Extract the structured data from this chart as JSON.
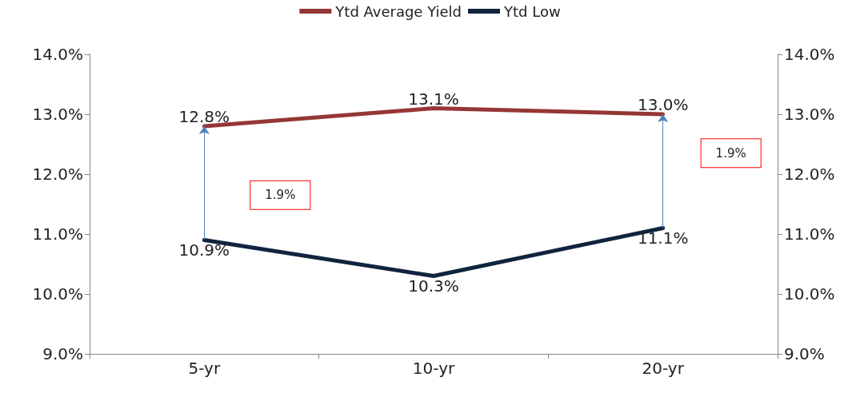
{
  "chart_data": {
    "type": "line",
    "categories": [
      "5-yr",
      "10-yr",
      "20-yr"
    ],
    "series": [
      {
        "name": "Ytd Average Yield",
        "color": "#953735",
        "values": [
          12.8,
          13.1,
          13.0
        ],
        "value_labels": [
          "12.8%",
          "13.1%",
          "13.0%"
        ]
      },
      {
        "name": "Ytd Low",
        "color": "#10243e",
        "values": [
          10.9,
          10.3,
          11.1
        ],
        "value_labels": [
          "10.9%",
          "10.3%",
          "11.1%"
        ]
      }
    ],
    "ylim": [
      9,
      14
    ],
    "yticks": [
      {
        "value": 9,
        "label": "9.0%"
      },
      {
        "value": 10,
        "label": "10.0%"
      },
      {
        "value": 11,
        "label": "11.0%"
      },
      {
        "value": 12,
        "label": "12.0%"
      },
      {
        "value": 13,
        "label": "13.0%"
      },
      {
        "value": 14,
        "label": "14.0%"
      }
    ],
    "y2lim": [
      9,
      14
    ],
    "y2ticks": [
      {
        "value": 9,
        "label": "9.0%"
      },
      {
        "value": 10,
        "label": "10.0%"
      },
      {
        "value": 11,
        "label": "11.0%"
      },
      {
        "value": 12,
        "label": "12.0%"
      },
      {
        "value": 13,
        "label": "13.0%"
      },
      {
        "value": 14,
        "label": "14.0%"
      }
    ],
    "annotations": [
      "1.9%",
      "1.9%"
    ],
    "legend": "top",
    "grid": false,
    "marker": "none",
    "line_style": "solid"
  }
}
